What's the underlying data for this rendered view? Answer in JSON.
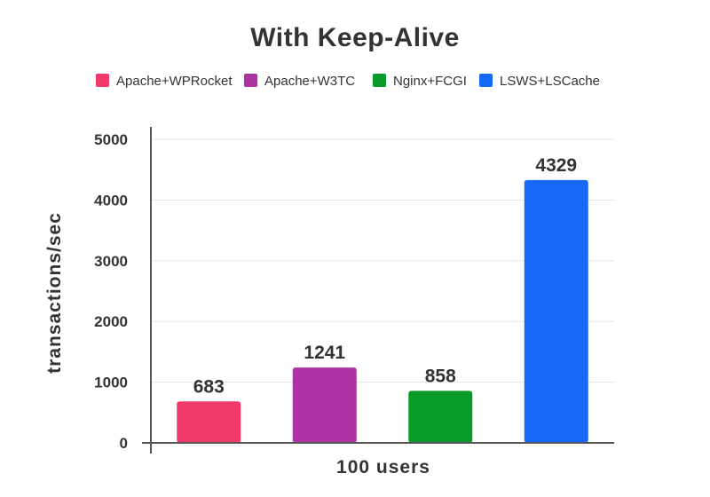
{
  "chart_data": {
    "type": "bar",
    "title": "With Keep-Alive",
    "xlabel": "100 users",
    "ylabel": "transactions/sec",
    "ylim": [
      0,
      5000
    ],
    "yticks": [
      0,
      1000,
      2000,
      3000,
      4000,
      5000
    ],
    "grid": true,
    "legend_position": "top",
    "categories": [
      "100 users"
    ],
    "series": [
      {
        "name": "Apache+WPRocket",
        "values": [
          683
        ],
        "color": "#ef3a6b"
      },
      {
        "name": "Apache+W3TC",
        "values": [
          1241
        ],
        "color": "#ad33a3"
      },
      {
        "name": "Nginx+FCGI",
        "values": [
          858
        ],
        "color": "#0a9a2a"
      },
      {
        "name": "LSWS+LSCache",
        "values": [
          4329
        ],
        "color": "#1569f6"
      }
    ]
  }
}
